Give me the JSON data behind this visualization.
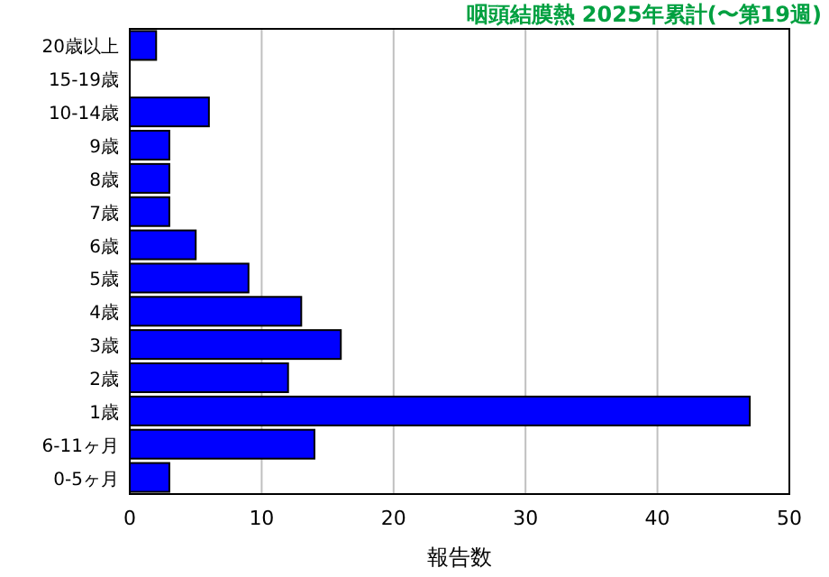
{
  "chart_data": {
    "type": "bar",
    "orientation": "horizontal",
    "title": "咽頭結膜熱 2025年累計(〜第19週)",
    "xlabel": "報告数",
    "categories": [
      "20歳以上",
      "15-19歳",
      "10-14歳",
      "9歳",
      "8歳",
      "7歳",
      "6歳",
      "5歳",
      "4歳",
      "3歳",
      "2歳",
      "1歳",
      "6-11ヶ月",
      "0-5ヶ月"
    ],
    "values": [
      2,
      0,
      6,
      3,
      3,
      3,
      5,
      9,
      13,
      16,
      12,
      47,
      14,
      3
    ],
    "color": "#0000ff",
    "xlim": [
      0,
      50
    ],
    "xticks": [
      0,
      10,
      20,
      30,
      40,
      50
    ],
    "grid": "x"
  }
}
